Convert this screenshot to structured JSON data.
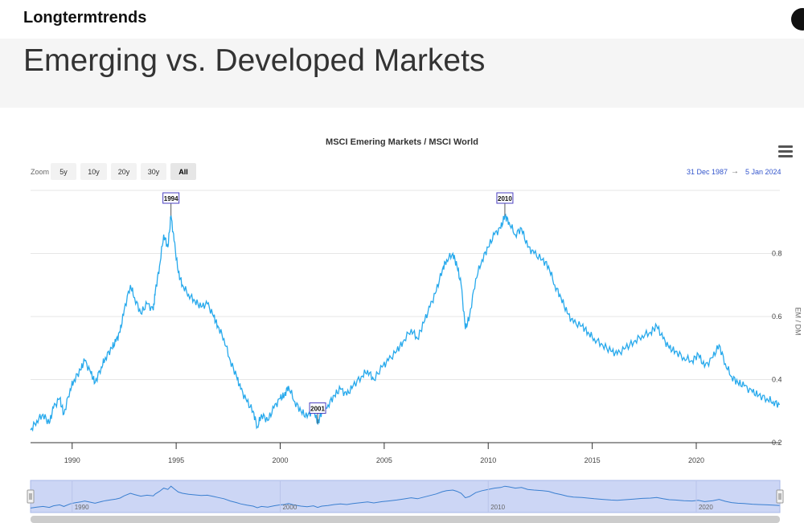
{
  "site": {
    "brand": "Longtermtrends"
  },
  "page": {
    "title": "Emerging vs. Developed Markets"
  },
  "toolbar": {
    "zoom_label": "Zoom",
    "buttons": [
      "5y",
      "10y",
      "20y",
      "30y",
      "All"
    ],
    "active": "All",
    "range_from": "31 Dec 1987",
    "range_arrow": "→",
    "range_to": "5 Jan 2024"
  },
  "colors": {
    "series": "#27a9ec",
    "navigator_fill": "#ccd6f5",
    "flag_border": "#4a3fc0"
  },
  "chart_data": {
    "type": "line",
    "title": "MSCI Emering Markets / MSCI World",
    "ylabel": "EM / DM",
    "ylim": [
      0.2,
      1.0
    ],
    "xlim": [
      1988.0,
      2024.02
    ],
    "y_ticks": [
      "0.2",
      "0.4",
      "0.6",
      "0.8"
    ],
    "x_ticks": [
      "1990",
      "1995",
      "2000",
      "2005",
      "2010",
      "2015",
      "2020"
    ],
    "navigator_ticks": [
      "1990",
      "2000",
      "2010",
      "2020"
    ],
    "grid": true,
    "legend": "none",
    "flags": [
      {
        "label": "1994",
        "x": 1994.75,
        "y": 0.92
      },
      {
        "label": "2001",
        "x": 2001.8,
        "y": 0.26
      },
      {
        "label": "2010",
        "x": 2010.8,
        "y": 0.92
      }
    ],
    "series": [
      {
        "x": [
          1988.0,
          1988.3,
          1988.6,
          1988.9,
          1989.1,
          1989.4,
          1989.6,
          1989.9,
          1990.1,
          1990.4,
          1990.6,
          1990.9,
          1991.1,
          1991.4,
          1991.6,
          1991.9,
          1992.1,
          1992.3,
          1992.5,
          1992.8,
          1993.0,
          1993.3,
          1993.6,
          1993.9,
          1994.0,
          1994.2,
          1994.4,
          1994.6,
          1994.75,
          1994.9,
          1995.1,
          1995.3,
          1995.6,
          1995.9,
          1996.2,
          1996.5,
          1996.8,
          1997.0,
          1997.3,
          1997.6,
          1997.9,
          1998.1,
          1998.4,
          1998.7,
          1998.9,
          1999.1,
          1999.4,
          1999.7,
          2000.0,
          2000.2,
          2000.4,
          2000.7,
          2001.0,
          2001.3,
          2001.6,
          2001.8,
          2002.0,
          2002.3,
          2002.6,
          2002.9,
          2003.2,
          2003.5,
          2003.9,
          2004.2,
          2004.5,
          2004.9,
          2005.2,
          2005.6,
          2005.9,
          2006.3,
          2006.6,
          2006.9,
          2007.2,
          2007.5,
          2007.8,
          2008.0,
          2008.3,
          2008.5,
          2008.7,
          2008.9,
          2009.1,
          2009.4,
          2009.7,
          2010.0,
          2010.3,
          2010.6,
          2010.8,
          2011.0,
          2011.3,
          2011.6,
          2011.9,
          2012.2,
          2012.6,
          2012.9,
          2013.2,
          2013.5,
          2013.8,
          2014.1,
          2014.5,
          2014.8,
          2015.1,
          2015.5,
          2015.9,
          2016.2,
          2016.6,
          2017.0,
          2017.4,
          2017.8,
          2018.1,
          2018.4,
          2018.7,
          2019.0,
          2019.4,
          2019.8,
          2020.1,
          2020.4,
          2020.8,
          2021.1,
          2021.4,
          2021.7,
          2022.0,
          2022.3,
          2022.7,
          2023.0,
          2023.4,
          2023.7,
          2024.0
        ],
        "values": [
          0.24,
          0.27,
          0.29,
          0.26,
          0.31,
          0.34,
          0.29,
          0.37,
          0.4,
          0.43,
          0.46,
          0.42,
          0.39,
          0.44,
          0.47,
          0.5,
          0.52,
          0.55,
          0.62,
          0.7,
          0.66,
          0.61,
          0.64,
          0.62,
          0.68,
          0.76,
          0.86,
          0.82,
          0.92,
          0.84,
          0.74,
          0.7,
          0.67,
          0.65,
          0.63,
          0.64,
          0.6,
          0.57,
          0.53,
          0.46,
          0.41,
          0.37,
          0.33,
          0.3,
          0.25,
          0.29,
          0.27,
          0.31,
          0.34,
          0.35,
          0.38,
          0.33,
          0.3,
          0.28,
          0.31,
          0.26,
          0.3,
          0.32,
          0.35,
          0.37,
          0.35,
          0.38,
          0.41,
          0.43,
          0.4,
          0.44,
          0.46,
          0.49,
          0.52,
          0.56,
          0.53,
          0.58,
          0.63,
          0.68,
          0.75,
          0.78,
          0.8,
          0.76,
          0.7,
          0.56,
          0.6,
          0.72,
          0.78,
          0.82,
          0.86,
          0.88,
          0.92,
          0.9,
          0.86,
          0.88,
          0.82,
          0.8,
          0.78,
          0.76,
          0.7,
          0.66,
          0.61,
          0.58,
          0.57,
          0.55,
          0.53,
          0.51,
          0.49,
          0.48,
          0.5,
          0.52,
          0.54,
          0.55,
          0.57,
          0.53,
          0.5,
          0.49,
          0.47,
          0.46,
          0.48,
          0.44,
          0.47,
          0.51,
          0.45,
          0.41,
          0.39,
          0.38,
          0.36,
          0.35,
          0.34,
          0.33,
          0.32
        ]
      }
    ]
  }
}
